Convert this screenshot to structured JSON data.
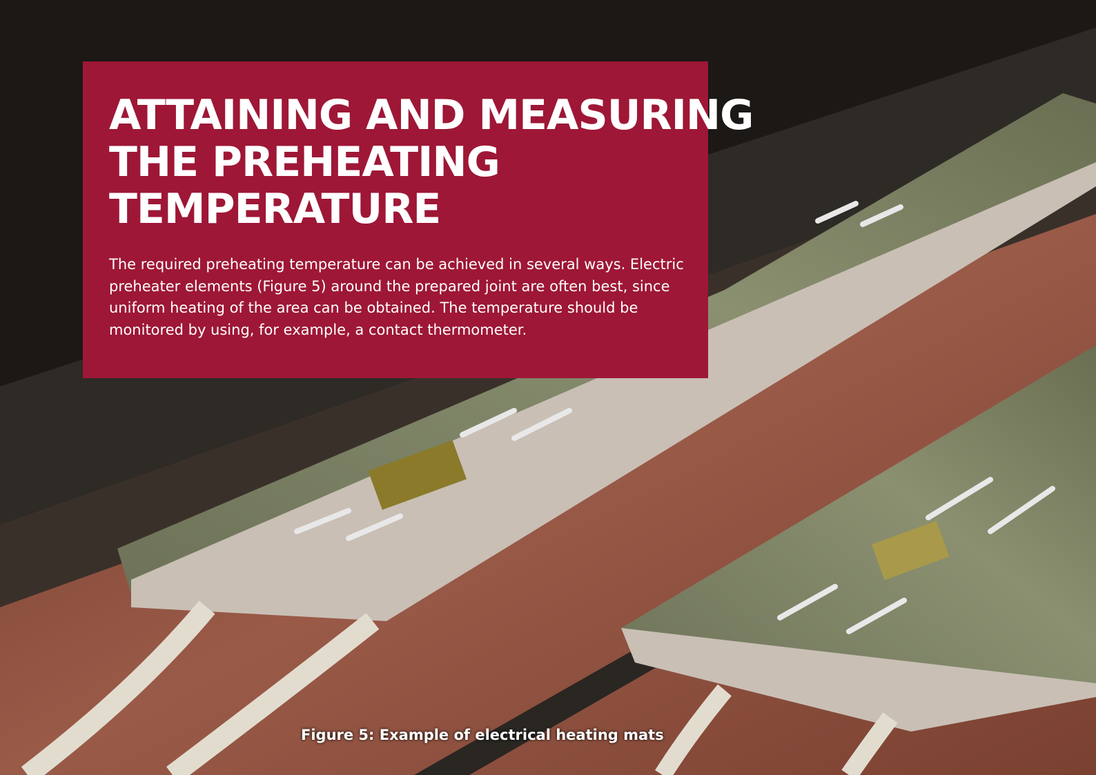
{
  "heading": {
    "lines": [
      "ATTAINING AND MEASURING",
      "THE PREHEATING",
      "TEMPERATURE"
    ]
  },
  "body": {
    "lines": [
      "The required preheating temperature can be achieved in several ways. Electric",
      "preheater elements (Figure 5) around the prepared joint are often best, since",
      "uniform heating of the area can be obtained. The temperature should be",
      "monitored by using, for example, a contact thermometer."
    ]
  },
  "caption": "Figure 5: Example of electrical heating mats"
}
